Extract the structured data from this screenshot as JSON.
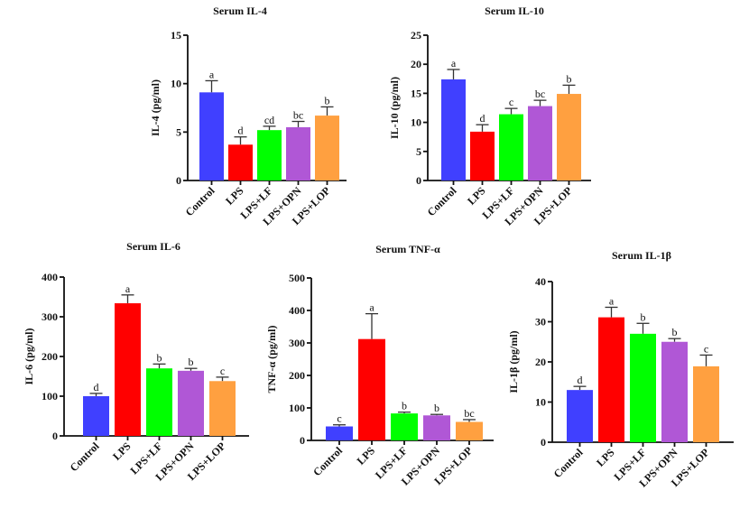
{
  "chart_data": [
    {
      "type": "bar",
      "title": "Serum IL-4",
      "xlabel": "",
      "ylabel": "IL-4 (pg/ml)",
      "ylim": [
        0,
        15
      ],
      "yticks": [
        0,
        5,
        10,
        15
      ],
      "categories": [
        "Control",
        "LPS",
        "LPS+LF",
        "LPS+OPN",
        "LPS+LOP"
      ],
      "values": [
        9.1,
        3.7,
        5.2,
        5.5,
        6.7
      ],
      "errors": [
        1.2,
        0.8,
        0.4,
        0.6,
        0.9
      ],
      "significance": [
        "a",
        "d",
        "cd",
        "bc",
        "b"
      ],
      "grid": false
    },
    {
      "type": "bar",
      "title": "Serum IL-10",
      "xlabel": "",
      "ylabel": "IL-10 (pg/ml)",
      "ylim": [
        0,
        25
      ],
      "yticks": [
        0,
        5,
        10,
        15,
        20,
        25
      ],
      "categories": [
        "Control",
        "LPS",
        "LPS+LF",
        "LPS+OPN",
        "LPS+LOP"
      ],
      "values": [
        17.4,
        8.4,
        11.4,
        12.8,
        14.9
      ],
      "errors": [
        1.7,
        1.2,
        1.0,
        1.0,
        1.5
      ],
      "significance": [
        "a",
        "d",
        "c",
        "bc",
        "b"
      ],
      "grid": false
    },
    {
      "type": "bar",
      "title": "Serum IL-6",
      "xlabel": "",
      "ylabel": "IL-6 (pg/ml)",
      "ylim": [
        0,
        400
      ],
      "yticks": [
        0,
        100,
        200,
        300,
        400
      ],
      "categories": [
        "Control",
        "LPS",
        "LPS+LF",
        "LPS+OPN",
        "LPS+LOP"
      ],
      "values": [
        100,
        334,
        170,
        164,
        138
      ],
      "errors": [
        7,
        21,
        11,
        6,
        10
      ],
      "significance": [
        "d",
        "a",
        "b",
        "b",
        "c"
      ],
      "grid": false
    },
    {
      "type": "bar",
      "title": "Serum TNF-α",
      "xlabel": "",
      "ylabel": "TNF-α (pg/ml)",
      "ylim": [
        0,
        500
      ],
      "yticks": [
        0,
        100,
        200,
        300,
        400,
        500
      ],
      "categories": [
        "Control",
        "LPS",
        "LPS+LF",
        "LPS+OPN",
        "LPS+LOP"
      ],
      "values": [
        43,
        312,
        83,
        77,
        57
      ],
      "errors": [
        5,
        78,
        4,
        3,
        7
      ],
      "significance": [
        "c",
        "a",
        "b",
        "b",
        "bc"
      ],
      "grid": false
    },
    {
      "type": "bar",
      "title": "Serum IL-1β",
      "xlabel": "",
      "ylabel": "IL-1β (pg/ml)",
      "ylim": [
        0,
        40
      ],
      "yticks": [
        0,
        10,
        20,
        30,
        40
      ],
      "categories": [
        "Control",
        "LPS",
        "LPS+LF",
        "LPS+OPN",
        "LPS+LOP"
      ],
      "values": [
        13,
        31.1,
        27,
        25,
        18.9
      ],
      "errors": [
        0.9,
        2.5,
        2.6,
        0.8,
        2.8
      ],
      "significance": [
        "d",
        "a",
        "b",
        "b",
        "c"
      ],
      "grid": false
    }
  ],
  "colors": {
    "Control": "#4040ff",
    "LPS": "#ff0000",
    "LPS+LF": "#00ff00",
    "LPS+OPN": "#b057d6",
    "LPS+LOP": "#ffa040"
  }
}
